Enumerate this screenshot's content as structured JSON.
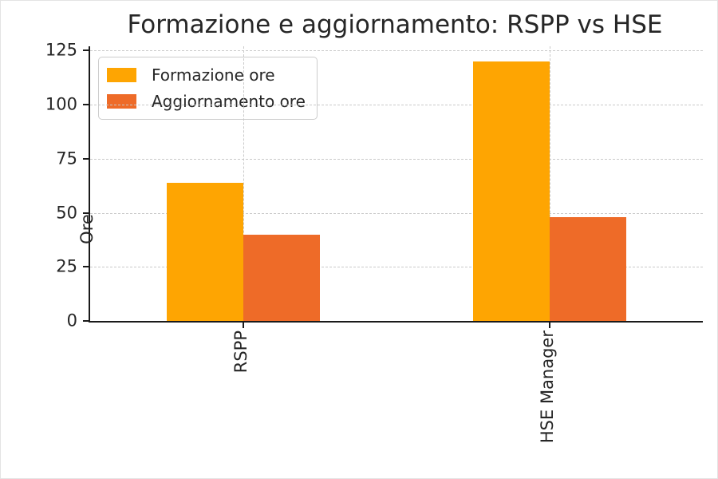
{
  "figure": {
    "background": "#ffffff",
    "title": "Formazione e aggiornamento: RSPP vs HSE"
  },
  "chart_data": {
    "type": "bar",
    "title": "Formazione e aggiornamento: RSPP vs HSE",
    "categories": [
      "RSPP",
      "HSE Manager"
    ],
    "series": [
      {
        "name": "Formazione ore",
        "values": [
          64,
          120
        ],
        "color": "#FEA502"
      },
      {
        "name": "Aggiornamento ore",
        "values": [
          40,
          48
        ],
        "color": "#EE6B28"
      }
    ],
    "xlabel": "",
    "ylabel": "Ore",
    "yticks": [
      0,
      25,
      50,
      75,
      100,
      125
    ],
    "ylim": [
      0,
      127
    ],
    "grid": true,
    "grid_style": "dashed",
    "legend_position": "upper left",
    "xtick_rotation": 90,
    "colors": {
      "axis": "#1a1a1a",
      "grid": "#c9c9c9",
      "text": "#262626"
    }
  }
}
